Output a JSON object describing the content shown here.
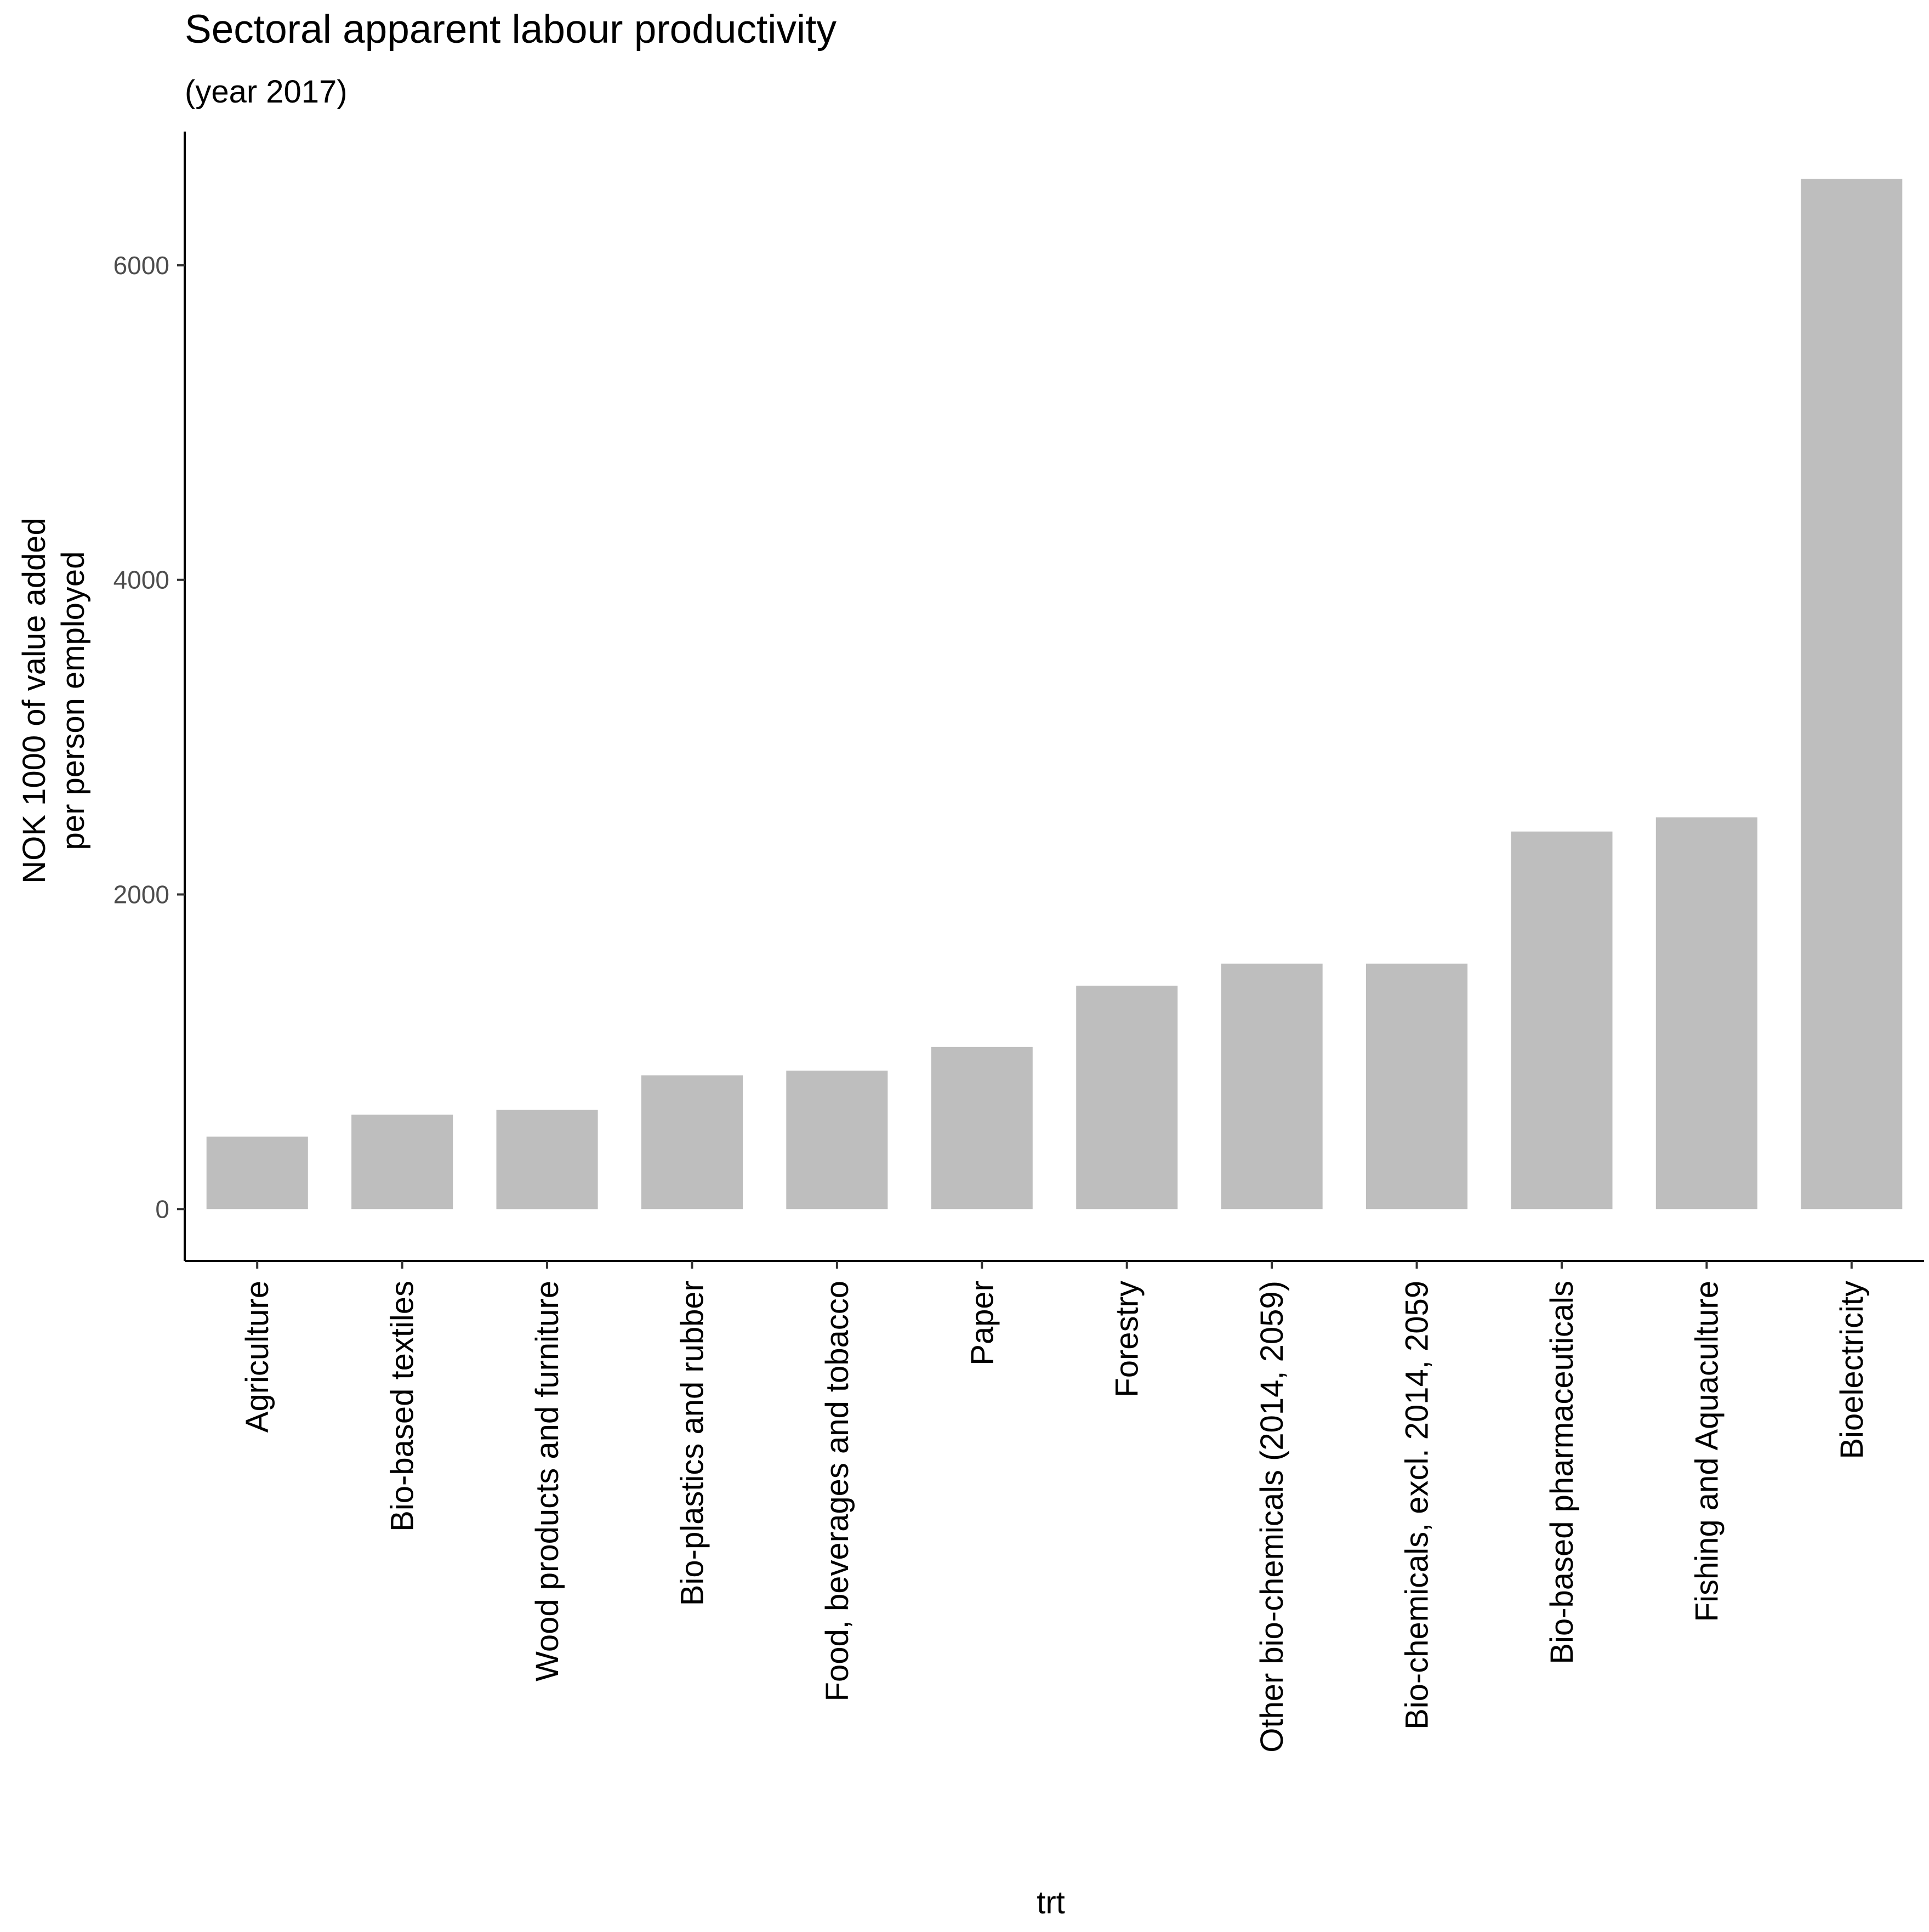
{
  "chart_data": {
    "type": "bar",
    "title": "Sectoral apparent labour productivity",
    "subtitle": "(year 2017)",
    "xlabel": "trt",
    "ylabel_lines": [
      "NOK 1000 of value added",
      "per person employed"
    ],
    "categories": [
      "Agriculture",
      "Bio-based textiles",
      "Wood products and furniture",
      "Bio-plastics and rubber",
      "Food, beverages and tobacco",
      "Paper",
      "Forestry",
      "Other bio-chemicals (2014, 2059)",
      "Bio-chemicals, excl. 2014, 2059",
      "Bio-based pharmaceuticals",
      "Fishing and Aquaculture",
      "Bioelectricity"
    ],
    "values": [
      460,
      600,
      630,
      850,
      880,
      1030,
      1420,
      1560,
      1560,
      2400,
      2490,
      6550
    ],
    "yticks": [
      0,
      2000,
      4000,
      6000
    ],
    "ytick_labels": [
      "0",
      "2000",
      "4000",
      "6000"
    ],
    "ylim": [
      -330,
      6850
    ],
    "bar_color": "#bebebe",
    "axis_color": "#000000",
    "tick_label_color": "#4d4d4d",
    "grid": false,
    "legend": "none"
  }
}
